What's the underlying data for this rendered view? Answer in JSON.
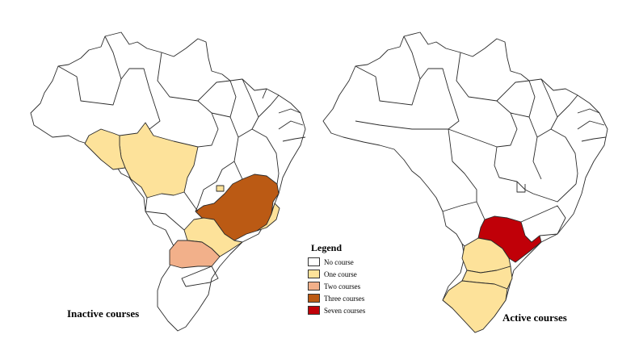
{
  "maps": [
    {
      "title": "Inactive courses",
      "states": [
        {
          "name": "MT",
          "category": 1
        },
        {
          "name": "RO",
          "category": 1
        },
        {
          "name": "DF",
          "category": 1
        },
        {
          "name": "RJ",
          "category": 1
        },
        {
          "name": "SP",
          "category": 1
        },
        {
          "name": "PR",
          "category": 2
        },
        {
          "name": "MG",
          "category": 3
        }
      ]
    },
    {
      "title": "Active courses",
      "states": [
        {
          "name": "SP",
          "category": 4
        },
        {
          "name": "PR",
          "category": 1
        },
        {
          "name": "SC",
          "category": 1
        },
        {
          "name": "RS",
          "category": 1
        }
      ]
    }
  ],
  "legend": {
    "title": "Legend",
    "items": [
      {
        "label": "No course",
        "color": "#ffffff"
      },
      {
        "label": "One course",
        "color": "#fde29a"
      },
      {
        "label": "Two courses",
        "color": "#f2b08a"
      },
      {
        "label": "Three courses",
        "color": "#bb5a14"
      },
      {
        "label": "Seven courses",
        "color": "#c00008"
      }
    ]
  }
}
